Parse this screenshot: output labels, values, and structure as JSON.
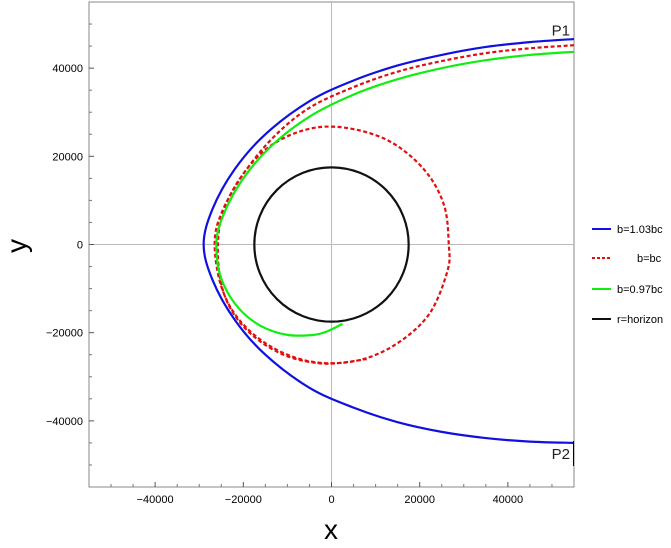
{
  "chart_data": {
    "type": "line",
    "title": "",
    "xlabel": "x",
    "ylabel": "y",
    "xlim": [
      -55000,
      55000
    ],
    "ylim": [
      -55000,
      55000
    ],
    "x_ticks": [
      -40000,
      -20000,
      0,
      20000,
      40000
    ],
    "y_ticks": [
      -40000,
      -20000,
      0,
      20000,
      40000
    ],
    "x_tick_labels": [
      "−40000",
      "−20000",
      "0",
      "20000",
      "40000"
    ],
    "y_tick_labels": [
      "−40000",
      "−20000",
      "0",
      "20000",
      "40000"
    ],
    "grid": "axes through origin",
    "legend_position": "right",
    "annotations": [
      {
        "text": "P1",
        "x": 52000,
        "y": 48500
      },
      {
        "text": "P2",
        "x": 52000,
        "y": -47500
      }
    ],
    "series": [
      {
        "name": "b=1.03bc",
        "color": "#1010e0",
        "style": "solid",
        "points": [
          [
            55000,
            46600
          ],
          [
            45000,
            45900
          ],
          [
            35000,
            44800
          ],
          [
            25000,
            43000
          ],
          [
            15000,
            40600
          ],
          [
            5000,
            37200
          ],
          [
            -5000,
            32500
          ],
          [
            -15000,
            25000
          ],
          [
            -22000,
            17000
          ],
          [
            -27000,
            8000
          ],
          [
            -29000,
            0
          ],
          [
            -27000,
            -8000
          ],
          [
            -22000,
            -17000
          ],
          [
            -15000,
            -25000
          ],
          [
            -5000,
            -32500
          ],
          [
            5000,
            -37000
          ],
          [
            15000,
            -40300
          ],
          [
            25000,
            -42500
          ],
          [
            35000,
            -43900
          ],
          [
            45000,
            -44700
          ],
          [
            55000,
            -45000
          ]
        ]
      },
      {
        "name": "b=bc",
        "color": "#e01010",
        "style": "dashed",
        "points": [
          [
            55000,
            45200
          ],
          [
            45000,
            44500
          ],
          [
            35000,
            43400
          ],
          [
            25000,
            41600
          ],
          [
            15000,
            39200
          ],
          [
            5000,
            35700
          ],
          [
            -5000,
            31000
          ],
          [
            -13000,
            24500
          ],
          [
            -20000,
            16000
          ],
          [
            -25000,
            7000
          ],
          [
            -26500,
            0
          ],
          [
            -25000,
            -9500
          ],
          [
            -21000,
            -17000
          ],
          [
            -14000,
            -23000
          ],
          [
            -5000,
            -26500
          ],
          [
            5000,
            -26500
          ],
          [
            14000,
            -23000
          ],
          [
            22000,
            -16000
          ],
          [
            26300,
            -6000
          ],
          [
            26600,
            0
          ],
          [
            25500,
            9000
          ],
          [
            21000,
            17000
          ],
          [
            13000,
            23500
          ],
          [
            3000,
            26500
          ],
          [
            -6000,
            26000
          ],
          [
            -15000,
            21500
          ],
          [
            -22000,
            13000
          ],
          [
            -25500,
            3500
          ],
          [
            -25000,
            -9000
          ],
          [
            -20500,
            -18000
          ],
          [
            -12000,
            -24500
          ],
          [
            -2000,
            -27000
          ],
          [
            8000,
            -26000
          ]
        ]
      },
      {
        "name": "b=0.97bc",
        "color": "#10ee10",
        "style": "solid",
        "points": [
          [
            55000,
            43700
          ],
          [
            45000,
            43000
          ],
          [
            35000,
            41800
          ],
          [
            25000,
            40000
          ],
          [
            15000,
            37500
          ],
          [
            5000,
            34000
          ],
          [
            -5000,
            29000
          ],
          [
            -14000,
            22000
          ],
          [
            -21000,
            13500
          ],
          [
            -25500,
            4000
          ],
          [
            -26000,
            -3000
          ],
          [
            -24500,
            -9000
          ],
          [
            -21000,
            -14500
          ],
          [
            -16000,
            -18500
          ],
          [
            -10000,
            -20500
          ],
          [
            -4000,
            -20500
          ],
          [
            -1000,
            -19700
          ],
          [
            2500,
            -18000
          ]
        ]
      },
      {
        "name": "r=horizon",
        "color": "#111111",
        "style": "solid",
        "circle_radius": 17500
      }
    ]
  }
}
